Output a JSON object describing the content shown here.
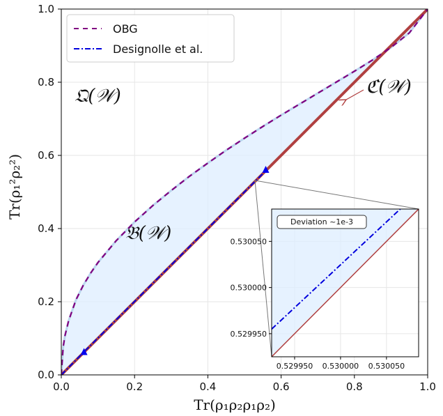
{
  "chart_data": {
    "type": "line",
    "xlabel": "Tr(ρ₁ρ₂ρ₁ρ₂)",
    "ylabel": "Tr(ρ₁²ρ₂²)",
    "xlim": [
      0,
      1
    ],
    "ylim": [
      0,
      1
    ],
    "x_ticks": [
      "0.0",
      "0.2",
      "0.4",
      "0.6",
      "0.8",
      "1.0"
    ],
    "y_ticks": [
      "0.0",
      "0.2",
      "0.4",
      "0.6",
      "0.8",
      "1.0"
    ],
    "grid": true,
    "legend_position": "top-left",
    "series": [
      {
        "name": "OBG",
        "style": "dashed",
        "color": "#800080",
        "x": [
          0,
          0.005,
          0.01,
          0.02,
          0.04,
          0.06,
          0.08,
          0.1,
          0.15,
          0.2,
          0.25,
          0.3,
          0.35,
          0.4,
          0.45,
          0.5,
          0.55,
          0.6,
          0.65,
          0.7,
          0.75,
          0.8,
          0.85,
          0.9,
          0.95,
          1.0
        ],
        "y": [
          0,
          0.075,
          0.107,
          0.148,
          0.205,
          0.245,
          0.278,
          0.307,
          0.367,
          0.418,
          0.463,
          0.504,
          0.543,
          0.579,
          0.614,
          0.647,
          0.679,
          0.71,
          0.74,
          0.77,
          0.8,
          0.83,
          0.861,
          0.895,
          0.935,
          1.0
        ]
      },
      {
        "name": "Designolle et al.",
        "style": "dashdot",
        "color": "#0000dd",
        "x": [
          0.0,
          0.06,
          0.56
        ],
        "y": [
          0.0,
          0.061,
          0.56
        ]
      },
      {
        "name": "",
        "style": "solid",
        "color": "#b04040",
        "x": [
          0,
          1
        ],
        "y": [
          0,
          1
        ]
      }
    ],
    "markers": [
      {
        "x": 0.062,
        "y": 0.062,
        "color": "#0000ee"
      },
      {
        "x": 0.558,
        "y": 0.56,
        "color": "#0000ee"
      }
    ],
    "region_labels": {
      "Q": "𝔔(𝒲)",
      "B": "𝔅(𝒲)",
      "C": "ℭ(𝒲)"
    },
    "inset": {
      "xlim": [
        0.529925,
        0.530085
      ],
      "ylim": [
        0.529925,
        0.530085
      ],
      "x_ticks": [
        "0.529950",
        "0.530000",
        "0.530050"
      ],
      "y_ticks": [
        "0.529950",
        "0.530000",
        "0.530050"
      ],
      "annotation": "Deviation ~1e-3",
      "designolle": {
        "x": [
          0.529925,
          0.530065
        ],
        "y": [
          0.529955,
          0.530085
        ]
      },
      "classical": {
        "x": [
          0.529925,
          0.530085
        ],
        "y": [
          0.529925,
          0.530085
        ]
      }
    }
  }
}
